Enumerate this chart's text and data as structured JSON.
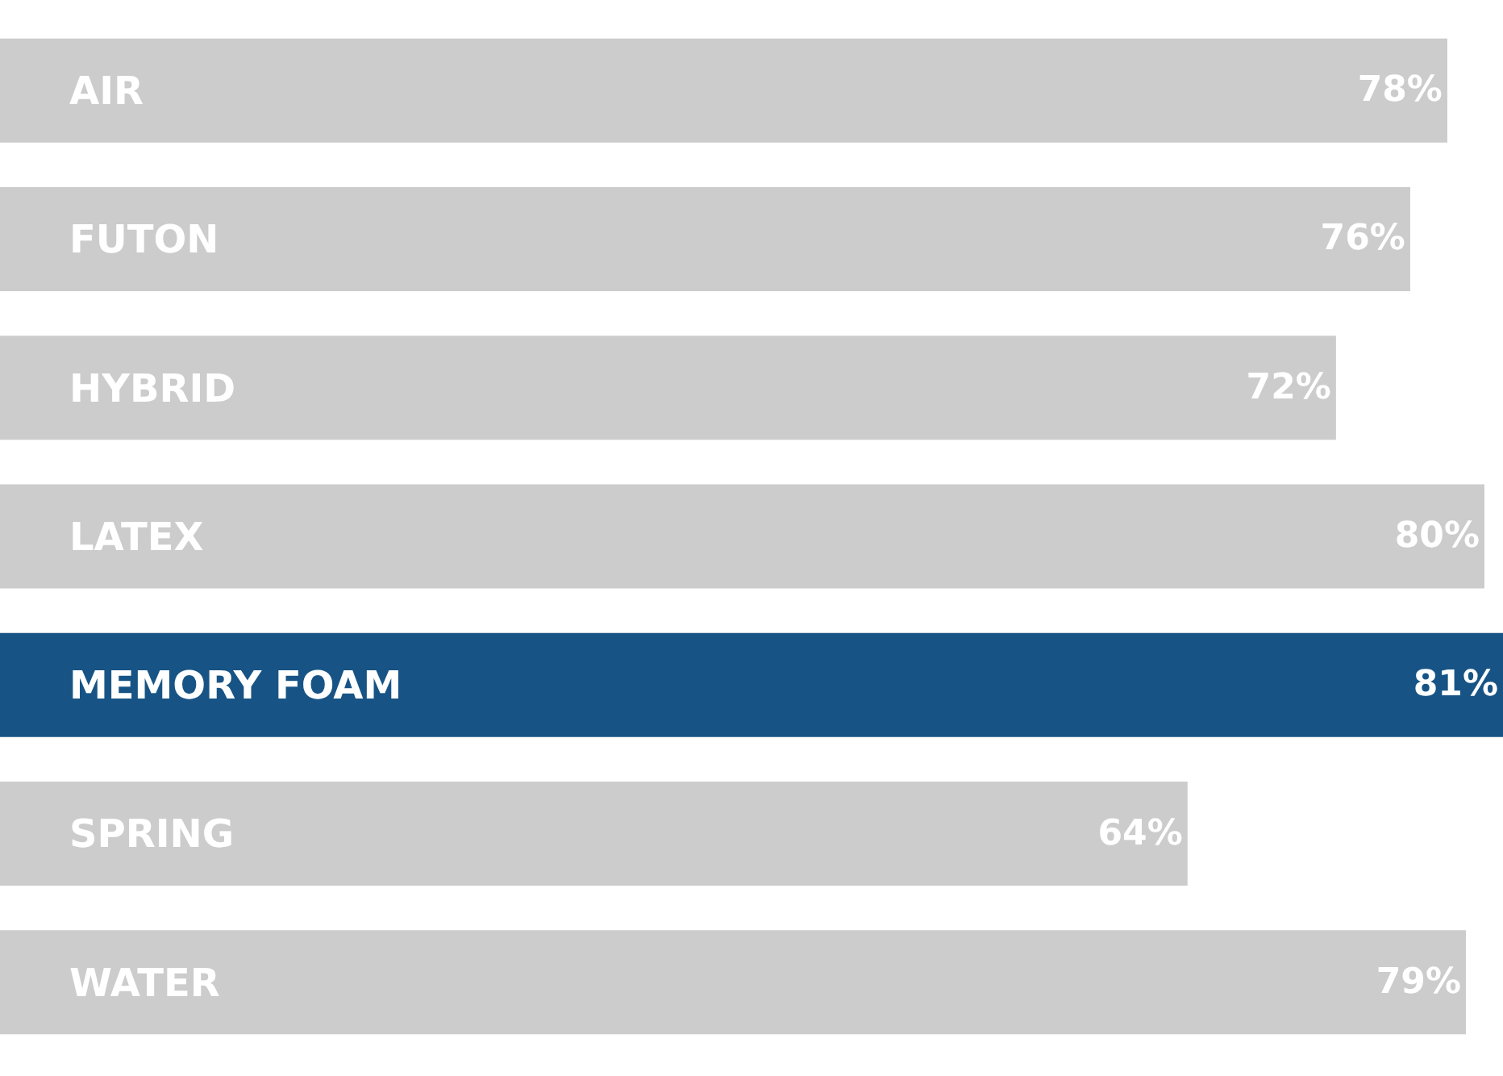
{
  "chart_data": {
    "type": "bar",
    "orientation": "horizontal",
    "categories": [
      "AIR",
      "FUTON",
      "HYBRID",
      "LATEX",
      "MEMORY FOAM",
      "SPRING",
      "WATER"
    ],
    "values": [
      78,
      76,
      72,
      80,
      81,
      64,
      79
    ],
    "value_labels": [
      "78%",
      "76%",
      "72%",
      "80%",
      "81%",
      "64%",
      "79%"
    ],
    "colors": [
      "#cccccc",
      "#cccccc",
      "#cccccc",
      "#cccccc",
      "#175485",
      "#cccccc",
      "#cccccc"
    ]
  }
}
